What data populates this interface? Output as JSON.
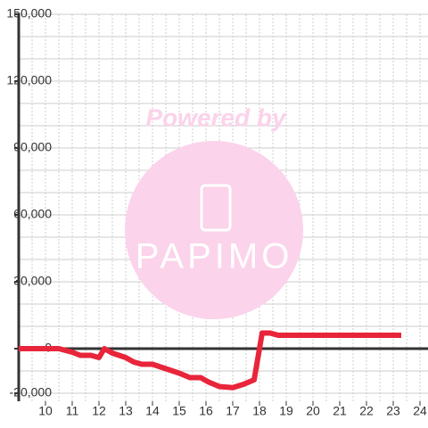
{
  "chart_data": {
    "type": "line",
    "watermark": "Powered by",
    "watermark_logo": "PAPIMO",
    "x": [
      9.0,
      10.5,
      11.0,
      11.3,
      11.7,
      12.0,
      12.2,
      12.5,
      13.0,
      13.3,
      13.6,
      14.0,
      14.5,
      15.0,
      15.4,
      15.8,
      16.1,
      16.5,
      17.0,
      17.4,
      17.8,
      18.1,
      18.4,
      18.7,
      23.3
    ],
    "series": [
      {
        "color": "#e8253a",
        "values": [
          0,
          0,
          -1600,
          -3000,
          -3000,
          -4000,
          0,
          -2000,
          -4000,
          -6000,
          -7000,
          -7000,
          -9000,
          -11000,
          -13000,
          -13000,
          -15000,
          -17000,
          -17500,
          -16000,
          -14000,
          7000,
          7000,
          6000,
          6000
        ]
      }
    ],
    "xlim": [
      9,
      24.3
    ],
    "ylim": [
      -23600,
      150000
    ],
    "xticks": [
      10,
      11,
      12,
      13,
      14,
      15,
      16,
      17,
      18,
      19,
      20,
      21,
      22,
      23,
      24
    ],
    "yticks": [
      {
        "value": -20000,
        "label": "-20,000"
      },
      0,
      {
        "value": 30000,
        "label": "30,000"
      },
      {
        "value": 60000,
        "label": "60,000"
      },
      {
        "value": 90000,
        "label": "90,000"
      },
      {
        "value": 120000,
        "label": "120,000"
      },
      {
        "value": 150000,
        "label": "150,000"
      }
    ],
    "grid": true,
    "x_minor_step": 0.5,
    "y_minor_step": 10000
  }
}
